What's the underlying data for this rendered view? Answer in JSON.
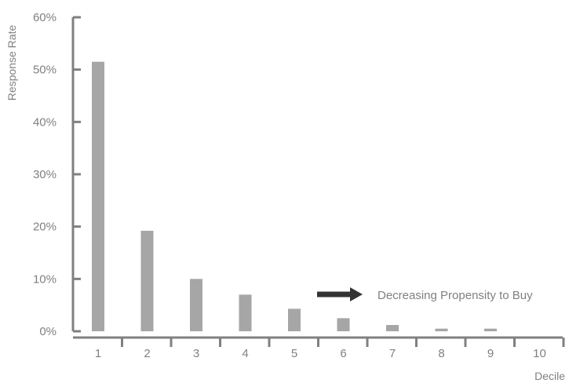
{
  "chart_data": {
    "type": "bar",
    "title": "",
    "xlabel": "Decile",
    "ylabel": "Response Rate",
    "categories": [
      "1",
      "2",
      "3",
      "4",
      "5",
      "6",
      "7",
      "8",
      "9",
      "10"
    ],
    "values": [
      51.5,
      19.2,
      10.0,
      7.0,
      4.3,
      2.5,
      1.2,
      0.5,
      0.5,
      0
    ],
    "ylim": [
      0,
      60
    ],
    "yticks": [
      0,
      10,
      20,
      30,
      40,
      50,
      60
    ],
    "ytick_labels": [
      "0%",
      "10%",
      "20%",
      "30%",
      "40%",
      "50%",
      "60%"
    ],
    "grid": false,
    "legend": "none",
    "annotation": {
      "text": "Decreasing Propensity to Buy",
      "arrow": "right"
    },
    "colors": {
      "bar": "#a6a6a6",
      "axis": "#808080",
      "text": "#808080",
      "arrow": "#333333"
    }
  }
}
